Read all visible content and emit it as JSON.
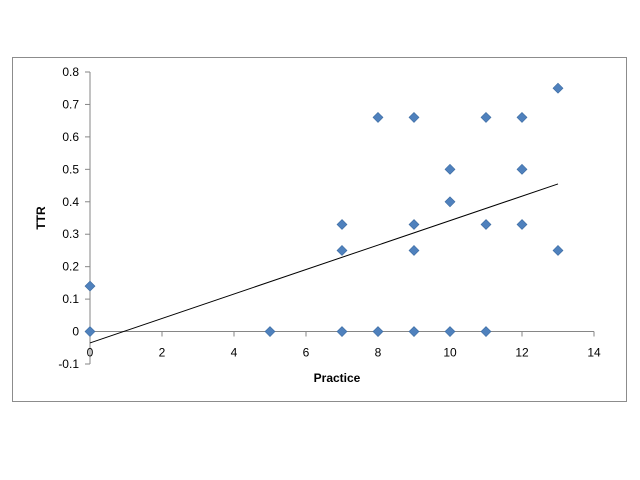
{
  "chart_data": {
    "type": "scatter",
    "xlabel": "Practice",
    "ylabel": "TTR",
    "xlim": [
      0,
      14
    ],
    "ylim": [
      -0.1,
      0.8
    ],
    "x_ticks": [
      0,
      2,
      4,
      6,
      8,
      10,
      12,
      14
    ],
    "y_ticks": [
      -0.1,
      0,
      0.1,
      0.2,
      0.3,
      0.4,
      0.5,
      0.6,
      0.7,
      0.8
    ],
    "y_tick_labels": [
      "-0.1",
      "0",
      "0.1",
      "0.2",
      "0.3",
      "0.4",
      "0.5",
      "0.6",
      "0.7",
      "0.8"
    ],
    "grid": false,
    "legend": "none",
    "marker": "diamond",
    "marker_color": "#4F81BD",
    "points": [
      {
        "x": 0,
        "y": 0.14
      },
      {
        "x": 0,
        "y": 0
      },
      {
        "x": 5,
        "y": 0
      },
      {
        "x": 7,
        "y": 0.33
      },
      {
        "x": 7,
        "y": 0.25
      },
      {
        "x": 7,
        "y": 0
      },
      {
        "x": 8,
        "y": 0.66
      },
      {
        "x": 8,
        "y": 0
      },
      {
        "x": 9,
        "y": 0.66
      },
      {
        "x": 9,
        "y": 0.33
      },
      {
        "x": 9,
        "y": 0.25
      },
      {
        "x": 9,
        "y": 0
      },
      {
        "x": 10,
        "y": 0.5
      },
      {
        "x": 10,
        "y": 0.4
      },
      {
        "x": 10,
        "y": 0
      },
      {
        "x": 11,
        "y": 0.66
      },
      {
        "x": 11,
        "y": 0.33
      },
      {
        "x": 11,
        "y": 0
      },
      {
        "x": 12,
        "y": 0.66
      },
      {
        "x": 12,
        "y": 0.5
      },
      {
        "x": 12,
        "y": 0.33
      },
      {
        "x": 13,
        "y": 0.75
      },
      {
        "x": 13,
        "y": 0.25
      }
    ],
    "trendline": {
      "type": "linear",
      "color": "#000000",
      "x": [
        0,
        13
      ],
      "y": [
        -0.035,
        0.455
      ]
    }
  }
}
